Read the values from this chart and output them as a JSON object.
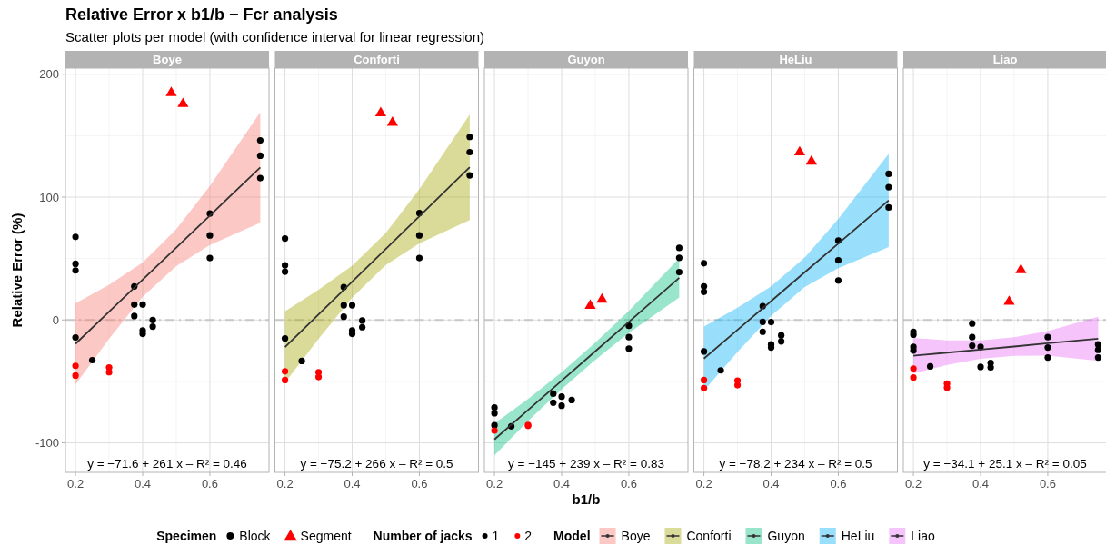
{
  "chart_data": [
    {
      "type": "scatter",
      "title": "Relative Error x b1/b − Fcr analysis",
      "subtitle": "Scatter plots per model (with confidence interval for linear regression)",
      "ylabel": "Relative Error (%)",
      "legend": "bottom",
      "legend_title": [
        "Specimen",
        "Number of jacks",
        "Model"
      ],
      "annotations": [
        "y = −71.6 + 261 x  –  R² = 0.46",
        "Block"
      ],
      "xlim": [
        0.17,
        0.776
      ],
      "ylim": [
        -124,
        205
      ],
      "xticks": [
        0.2,
        0.4,
        0.6
      ],
      "yticks": [
        -100,
        0,
        100,
        200
      ],
      "grid": true,
      "ref_lines": [
        {
          "axis": "y",
          "value": 0,
          "color": "#c8c8c8",
          "line_style": "dashed"
        }
      ],
      "series": [
        {
          "name": "1",
          "type": "scatter",
          "marker": "circle",
          "color": "#000000",
          "x": [
            0.2,
            0.2,
            0.2,
            0.2,
            0.25,
            0.375,
            0.375,
            0.375,
            0.4,
            0.4,
            0.4,
            0.43,
            0.43,
            0.6,
            0.6,
            0.6,
            0.75,
            0.75,
            0.75
          ],
          "values": [
            67.6,
            45.7,
            40.3,
            -14.3,
            -32.7,
            27.3,
            12.5,
            3.2,
            12.5,
            -8.6,
            -11.3,
            0,
            -5.4,
            86.7,
            68.8,
            50.4,
            146.2,
            133.7,
            115.5
          ]
        },
        {
          "name": "2",
          "type": "scatter",
          "marker": "circle",
          "color": "#ff0000",
          "x": [
            0.2,
            0.2,
            0.3,
            0.3
          ],
          "values": [
            -37.3,
            -45.2,
            -38.6,
            -42.5
          ]
        },
        {
          "name": "Segment",
          "type": "scatter",
          "marker": "triangle",
          "color": "#ff0000",
          "x": [
            0.485,
            0.52
          ],
          "values": [
            185,
            176
          ]
        },
        {
          "name": "Boye",
          "type": "line",
          "color": "#333333",
          "colors": [
            "#f8766d",
            "#f8766d",
            "#f8766d",
            "#f8766d",
            "#f8766d",
            "#f8766d"
          ],
          "x": [
            0.2,
            0.3,
            0.4,
            0.5,
            0.6,
            0.75
          ],
          "values": [
            -19.4,
            6.7,
            32.8,
            58.9,
            85,
            124.2
          ],
          "lower": [
            -52.4,
            -15.3,
            18.8,
            43.9,
            61,
            79.2
          ],
          "upper": [
            13.6,
            28.7,
            46.8,
            73.9,
            109,
            169.2
          ]
        }
      ]
    },
    {
      "type": "scatter",
      "tick_labels": "x",
      "annotations": [
        "y = −75.2 + 266 x  –  R² = 0.5"
      ],
      "xlim": [
        0.17,
        0.776
      ],
      "ylim": [
        -124,
        205
      ],
      "xticks": [
        0.2,
        0.4,
        0.6
      ],
      "yticks": [
        -100,
        0,
        100,
        200
      ],
      "grid": true,
      "ref_lines": [
        {
          "axis": "y",
          "value": 0,
          "color": "#c8c8c8",
          "line_style": "dashed"
        }
      ],
      "series": [
        {
          "name": "1",
          "type": "scatter",
          "marker": "circle",
          "color": "#000000",
          "x": [
            0.2,
            0.2,
            0.2,
            0.2,
            0.25,
            0.375,
            0.375,
            0.375,
            0.4,
            0.4,
            0.4,
            0.43,
            0.43,
            0.6,
            0.6,
            0.6,
            0.75,
            0.75,
            0.75
          ],
          "values": [
            66.3,
            44.5,
            39.3,
            -15,
            -33.4,
            26.8,
            12,
            2.7,
            12,
            -8.6,
            -11.3,
            -0.5,
            -5.9,
            87,
            68.8,
            50.4,
            149,
            136.6,
            117.7
          ]
        },
        {
          "name": "2",
          "type": "scatter",
          "marker": "circle",
          "color": "#ff0000",
          "x": [
            0.2,
            0.2,
            0.3,
            0.3
          ],
          "values": [
            -41.8,
            -48.9,
            -42.5,
            -46.4
          ]
        },
        {
          "name": "Segment",
          "type": "scatter",
          "marker": "triangle",
          "color": "#ff0000",
          "x": [
            0.485,
            0.52
          ],
          "values": [
            168.5,
            160.7
          ]
        },
        {
          "name": "Conforti",
          "type": "line",
          "color": "#333333",
          "colors": [
            "#a3a500",
            "#a3a500",
            "#a3a500",
            "#a3a500",
            "#a3a500",
            "#a3a500"
          ],
          "x": [
            0.2,
            0.3,
            0.4,
            0.5,
            0.6,
            0.75
          ],
          "values": [
            -22,
            4.6,
            31.2,
            57.8,
            84.4,
            124.3
          ],
          "lower": [
            -51,
            -15.4,
            18.2,
            44.8,
            62.4,
            81.3
          ],
          "upper": [
            7,
            24.6,
            44.2,
            70.8,
            106.4,
            167.3
          ]
        }
      ]
    },
    {
      "type": "scatter",
      "tick_labels": "x",
      "xlabel": "b1/b",
      "annotations": [
        "y = −145 + 239 x  –  R² = 0.83"
      ],
      "xlim": [
        0.17,
        0.776
      ],
      "ylim": [
        -124,
        205
      ],
      "xticks": [
        0.2,
        0.4,
        0.6
      ],
      "yticks": [
        -100,
        0,
        100,
        200
      ],
      "grid": true,
      "ref_lines": [
        {
          "axis": "y",
          "value": 0,
          "color": "#c8c8c8",
          "line_style": "dashed"
        }
      ],
      "series": [
        {
          "name": "1",
          "type": "scatter",
          "marker": "circle",
          "color": "#000000",
          "x": [
            0.2,
            0.2,
            0.2,
            0.25,
            0.375,
            0.375,
            0.4,
            0.4,
            0.43,
            0.6,
            0.6,
            0.6,
            0.75,
            0.75,
            0.75
          ],
          "values": [
            -71.3,
            -75.9,
            -85.7,
            -86.5,
            -60,
            -67.3,
            -62.4,
            -69.8,
            -65.2,
            -4.7,
            -14,
            -23.3,
            58.7,
            50.6,
            39
          ]
        },
        {
          "name": "2",
          "type": "scatter",
          "marker": "circle",
          "color": "#ff0000",
          "x": [
            0.2,
            0.3,
            0.3
          ],
          "values": [
            -90,
            -86.2,
            -85.5
          ]
        },
        {
          "name": "Segment",
          "type": "scatter",
          "marker": "triangle",
          "color": "#ff0000",
          "x": [
            0.485,
            0.52
          ],
          "values": [
            11.8,
            16.7
          ]
        },
        {
          "name": "Guyon",
          "type": "line",
          "color": "#333333",
          "colors": [
            "#00bf7d",
            "#00bf7d",
            "#00bf7d",
            "#00bf7d",
            "#00bf7d",
            "#00bf7d"
          ],
          "x": [
            0.2,
            0.3,
            0.4,
            0.5,
            0.6,
            0.75
          ],
          "values": [
            -97.2,
            -73.3,
            -49.4,
            -25.5,
            -1.6,
            34.3
          ],
          "lower": [
            -110.2,
            -82.3,
            -56.4,
            -32.5,
            -10.6,
            18.3
          ],
          "upper": [
            -84.2,
            -64.3,
            -42.4,
            -18.5,
            7.4,
            50.3
          ]
        }
      ]
    },
    {
      "type": "scatter",
      "tick_labels": "x",
      "annotations": [
        "y = −78.2 + 234 x  –  R² = 0.5"
      ],
      "xlim": [
        0.17,
        0.776
      ],
      "ylim": [
        -124,
        205
      ],
      "xticks": [
        0.2,
        0.4,
        0.6
      ],
      "yticks": [
        -100,
        0,
        100,
        200
      ],
      "grid": true,
      "ref_lines": [
        {
          "axis": "y",
          "value": 0,
          "color": "#c8c8c8",
          "line_style": "dashed"
        }
      ],
      "series": [
        {
          "name": "1",
          "type": "scatter",
          "marker": "circle",
          "color": "#000000",
          "x": [
            0.2,
            0.2,
            0.2,
            0.2,
            0.25,
            0.375,
            0.375,
            0.375,
            0.4,
            0.4,
            0.4,
            0.43,
            0.43,
            0.6,
            0.6,
            0.6,
            0.75,
            0.75,
            0.75
          ],
          "values": [
            46.2,
            27.3,
            22.9,
            -25.6,
            -41,
            11.3,
            -1.5,
            -9.6,
            -1.7,
            -19.9,
            -22.4,
            -12.5,
            -17.4,
            64.6,
            48.6,
            32.2,
            118.9,
            108.1,
            91.6
          ]
        },
        {
          "name": "2",
          "type": "scatter",
          "marker": "circle",
          "color": "#ff0000",
          "x": [
            0.2,
            0.2,
            0.3,
            0.3
          ],
          "values": [
            -48.9,
            -55.5,
            -49.4,
            -53.1
          ]
        },
        {
          "name": "Segment",
          "type": "scatter",
          "marker": "triangle",
          "color": "#ff0000",
          "x": [
            0.485,
            0.52
          ],
          "values": [
            136.6,
            129.2
          ]
        },
        {
          "name": "HeLiu",
          "type": "line",
          "color": "#333333",
          "colors": [
            "#00b0f6",
            "#00b0f6",
            "#00b0f6",
            "#00b0f6",
            "#00b0f6",
            "#00b0f6"
          ],
          "x": [
            0.2,
            0.3,
            0.4,
            0.5,
            0.6,
            0.75
          ],
          "values": [
            -31.4,
            -8,
            15.4,
            38.8,
            62.2,
            97.3
          ],
          "lower": [
            -57.4,
            -26,
            3.4,
            26.8,
            42.2,
            59.3
          ],
          "upper": [
            -5.4,
            10,
            27.4,
            50.8,
            82.2,
            135.3
          ]
        }
      ]
    },
    {
      "type": "scatter",
      "tick_labels": "x",
      "annotations": [
        "y = −34.1 + 25.1 x  –  R² = 0.05"
      ],
      "xlim": [
        0.17,
        0.776
      ],
      "ylim": [
        -124,
        205
      ],
      "xticks": [
        0.2,
        0.4,
        0.6
      ],
      "yticks": [
        -100,
        0,
        100,
        200
      ],
      "grid": true,
      "ref_lines": [
        {
          "axis": "y",
          "value": 0,
          "color": "#c8c8c8",
          "line_style": "dashed"
        }
      ],
      "series": [
        {
          "name": "1",
          "type": "scatter",
          "marker": "circle",
          "color": "#000000",
          "x": [
            0.2,
            0.2,
            0.2,
            0.2,
            0.25,
            0.375,
            0.375,
            0.375,
            0.4,
            0.4,
            0.43,
            0.43,
            0.6,
            0.6,
            0.6,
            0.75,
            0.75,
            0.75
          ],
          "values": [
            -9.6,
            -12,
            -21.9,
            -24.8,
            -37.8,
            -2.9,
            -14,
            -20.9,
            -21.9,
            -38.2,
            -34.9,
            -38.6,
            -14,
            -22.4,
            -30.5,
            -19.9,
            -24.3,
            -30.5
          ]
        },
        {
          "name": "2",
          "type": "scatter",
          "marker": "circle",
          "color": "#ff0000",
          "x": [
            0.2,
            0.2,
            0.3,
            0.3
          ],
          "values": [
            -39.6,
            -46.9,
            -51.8,
            -55
          ]
        },
        {
          "name": "Segment",
          "type": "scatter",
          "marker": "triangle",
          "color": "#ff0000",
          "x": [
            0.485,
            0.52
          ],
          "values": [
            15,
            40.8
          ]
        },
        {
          "name": "Liao",
          "type": "line",
          "color": "#333333",
          "colors": [
            "#e76bf3",
            "#e76bf3",
            "#e76bf3",
            "#e76bf3",
            "#e76bf3",
            "#e76bf3"
          ],
          "x": [
            0.2,
            0.3,
            0.4,
            0.5,
            0.6,
            0.75
          ],
          "values": [
            -29.1,
            -26.6,
            -24.1,
            -21.6,
            -19,
            -15.3
          ],
          "lower": [
            -43.6,
            -36.6,
            -31.6,
            -29.1,
            -29,
            -33.3
          ],
          "upper": [
            -14.6,
            -16.6,
            -16.6,
            -14.1,
            -9,
            2.7
          ]
        }
      ]
    }
  ]
}
